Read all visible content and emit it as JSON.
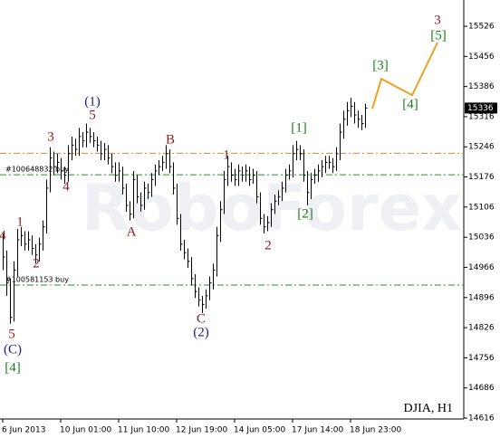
{
  "chart_data": {
    "type": "ohlc",
    "symbol": "DJIA, H1",
    "watermark": "RoboForex",
    "color": "#000000",
    "categories": [
      "6 Jun 2013",
      null,
      null,
      null,
      null,
      null,
      null,
      null,
      null,
      null,
      null,
      null,
      null,
      null,
      null,
      null,
      "10 Jun 01:00",
      null,
      null,
      null,
      null,
      null,
      null,
      null,
      null,
      null,
      null,
      null,
      null,
      null,
      null,
      null,
      "11 Jun 10:00",
      null,
      null,
      null,
      null,
      null,
      null,
      null,
      null,
      null,
      null,
      null,
      null,
      null,
      null,
      null,
      "12 Jun 19:00",
      null,
      null,
      null,
      null,
      null,
      null,
      null,
      null,
      null,
      null,
      null,
      null,
      null,
      null,
      null,
      "14 Jun 05:00",
      null,
      null,
      null,
      null,
      null,
      null,
      null,
      null,
      null,
      null,
      null,
      null,
      null,
      null,
      null,
      "17 Jun 14:00",
      null,
      null,
      null,
      null,
      null,
      null,
      null,
      null,
      null,
      null,
      null,
      null,
      null,
      null,
      null,
      "18 Jun 23:00",
      null,
      null,
      null,
      null
    ],
    "high": [
      15045,
      15005,
      14940,
      14980,
      15055,
      15060,
      15050,
      15050,
      15040,
      15020,
      15035,
      15075,
      15170,
      15245,
      15235,
      15230,
      15220,
      15200,
      15250,
      15270,
      15265,
      15290,
      15280,
      15300,
      15290,
      15280,
      15270,
      15260,
      15255,
      15250,
      15230,
      15210,
      15210,
      15200,
      15160,
      15120,
      15190,
      15180,
      15140,
      15165,
      15160,
      15185,
      15205,
      15215,
      15225,
      15250,
      15240,
      15210,
      15160,
      15090,
      15030,
      15010,
      14990,
      14950,
      14920,
      14900,
      14915,
      14945,
      14975,
      15060,
      15120,
      15190,
      15225,
      15210,
      15195,
      15205,
      15200,
      15205,
      15200,
      15195,
      15190,
      15140,
      15090,
      15085,
      15115,
      15135,
      15145,
      15165,
      15195,
      15205,
      15250,
      15260,
      15250,
      15240,
      15190,
      15185,
      15195,
      15205,
      15215,
      15225,
      15225,
      15220,
      15245,
      15300,
      15330,
      15350,
      15360,
      15350,
      15330,
      15320,
      15346
    ],
    "low": [
      14960,
      14900,
      14835,
      14840,
      14945,
      15015,
      15005,
      15005,
      14995,
      14975,
      14980,
      15005,
      15045,
      15140,
      15180,
      15185,
      15170,
      15160,
      15165,
      15215,
      15225,
      15225,
      15245,
      15245,
      15255,
      15245,
      15235,
      15215,
      15215,
      15205,
      15185,
      15165,
      15165,
      15135,
      15095,
      15075,
      15080,
      15115,
      15095,
      15100,
      15125,
      15130,
      15155,
      15180,
      15190,
      15195,
      15185,
      15135,
      15065,
      15005,
      14985,
      14965,
      14925,
      14895,
      14875,
      14860,
      14870,
      14890,
      14915,
      14945,
      15025,
      15090,
      15155,
      15165,
      15155,
      15155,
      15165,
      15165,
      15155,
      15160,
      15115,
      15065,
      15045,
      15050,
      15060,
      15090,
      15110,
      15120,
      15140,
      15170,
      15175,
      15215,
      15215,
      15165,
      15110,
      15125,
      15160,
      15165,
      15175,
      15185,
      15195,
      15185,
      15190,
      15215,
      15265,
      15295,
      15315,
      15300,
      15290,
      15285,
      15290
    ],
    "close": [
      14990,
      14930,
      14850,
      14960,
      15030,
      15040,
      15020,
      15030,
      15010,
      14995,
      15020,
      15060,
      15150,
      15220,
      15200,
      15210,
      15190,
      15180,
      15230,
      15250,
      15240,
      15270,
      15260,
      15280,
      15270,
      15260,
      15250,
      15230,
      15240,
      15220,
      15200,
      15180,
      15190,
      15150,
      15110,
      15090,
      15170,
      15130,
      15110,
      15150,
      15140,
      15170,
      15190,
      15200,
      15210,
      15230,
      15200,
      15150,
      15080,
      15020,
      15000,
      14980,
      14940,
      14910,
      14890,
      14880,
      14900,
      14930,
      14960,
      15040,
      15100,
      15170,
      15200,
      15180,
      15170,
      15190,
      15180,
      15190,
      15170,
      15180,
      15130,
      15080,
      15060,
      15070,
      15100,
      15120,
      15130,
      15150,
      15180,
      15190,
      15230,
      15240,
      15230,
      15180,
      15140,
      15170,
      15180,
      15190,
      15200,
      15210,
      15210,
      15200,
      15230,
      15280,
      15310,
      15330,
      15340,
      15320,
      15310,
      15300,
      15336
    ],
    "xlim": [
      -0.75,
      127.25
    ],
    "ylim": [
      14616,
      15587
    ],
    "yticks": [
      15526,
      15456,
      15386,
      15316,
      15246,
      15176,
      15106,
      15036,
      14966,
      14896,
      14826,
      14756,
      14686,
      14616
    ],
    "last_price": 15336,
    "levels": [
      {
        "value": 15231,
        "color": "#e0813a"
      },
      {
        "value": 15181,
        "label": "#100648832 buy",
        "color": "#2e8b2e"
      },
      {
        "value": 14925,
        "label": "#100581153 buy",
        "color": "#2e8b2e"
      }
    ],
    "projection": {
      "x": [
        102,
        104.5,
        113,
        120
      ],
      "values": [
        15334,
        15404,
        15366,
        15488
      ],
      "color": "#f0a020"
    },
    "waves": [
      {
        "label": "4",
        "color": "#8b1a1a"
      },
      {
        "label": "5",
        "color": "#8b1a1a"
      },
      {
        "label": "(C)",
        "color": "#1c1c8c"
      },
      {
        "label": "[4]",
        "color": "#1a7a1a"
      },
      {
        "label": "1",
        "color": "#8b1a1a"
      },
      {
        "label": "2",
        "color": "#8b1a1a"
      },
      {
        "label": "3",
        "color": "#8b1a1a"
      },
      {
        "label": "4",
        "color": "#8b1a1a"
      },
      {
        "label": "(1)",
        "color": "#1c1c8c"
      },
      {
        "label": "5",
        "color": "#8b1a1a"
      },
      {
        "label": "A",
        "color": "#8b1a1a"
      },
      {
        "label": "B",
        "color": "#8b1a1a"
      },
      {
        "label": "C",
        "color": "#8b1a1a"
      },
      {
        "label": "(2)",
        "color": "#1c1c8c"
      },
      {
        "label": "1",
        "color": "#8b1a1a"
      },
      {
        "label": "2",
        "color": "#8b1a1a"
      },
      {
        "label": "[1]",
        "color": "#1a7a1a"
      },
      {
        "label": "[2]",
        "color": "#1a7a1a"
      },
      {
        "label": "[3]",
        "color": "#1a7a1a"
      },
      {
        "label": "[4]",
        "color": "#1a7a1a"
      },
      {
        "label": "[5]",
        "color": "#1a7a1a"
      },
      {
        "label": "3",
        "color": "#8b1a1a"
      }
    ]
  }
}
